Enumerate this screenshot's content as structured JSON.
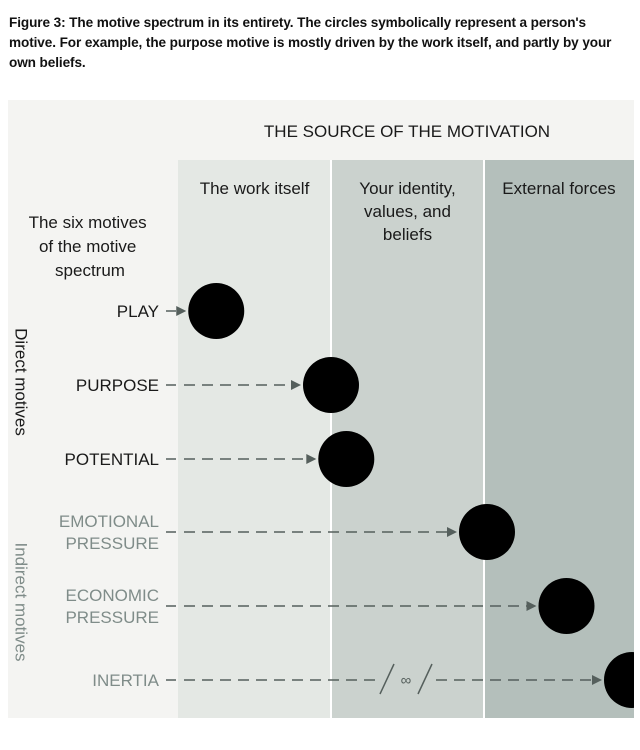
{
  "caption": "Figure 3: The motive spectrum in its entirety. The circles symbolically represent a person's motive. For example, the purpose motive is mostly driven by the work itself, and partly by your own beliefs.",
  "header": "THE SOURCE OF THE MOTIVATION",
  "motives_label": [
    "The six motives",
    "of the motive",
    "spectrum"
  ],
  "columns": [
    {
      "lines": [
        "The work itself"
      ],
      "color": "#e4e8e4"
    },
    {
      "lines": [
        "Your identity,",
        "values, and",
        "beliefs"
      ],
      "color": "#cbd2ce"
    },
    {
      "lines": [
        "External forces"
      ],
      "color": "#b4bfbb"
    }
  ],
  "groups": {
    "direct": "Direct motives",
    "indirect": "Indirect motives"
  },
  "motives": [
    {
      "lines": [
        "PLAY"
      ],
      "group": "direct",
      "position": 0.25
    },
    {
      "lines": [
        "PURPOSE"
      ],
      "group": "direct",
      "position": 1.0
    },
    {
      "lines": [
        "POTENTIAL"
      ],
      "group": "direct",
      "position": 1.1
    },
    {
      "lines": [
        "EMOTIONAL",
        "PRESSURE"
      ],
      "group": "indirect",
      "position": 2.02
    },
    {
      "lines": [
        "ECONOMIC",
        "PRESSURE"
      ],
      "group": "indirect",
      "position": 2.55
    },
    {
      "lines": [
        "INERTIA"
      ],
      "group": "indirect",
      "position": 3.0,
      "break_symbol": "∞"
    }
  ],
  "colors": {
    "direct_text": "#1a1a1a",
    "indirect_text": "#7f8c89",
    "arrow": "#555f5c",
    "circle": "#000000"
  }
}
